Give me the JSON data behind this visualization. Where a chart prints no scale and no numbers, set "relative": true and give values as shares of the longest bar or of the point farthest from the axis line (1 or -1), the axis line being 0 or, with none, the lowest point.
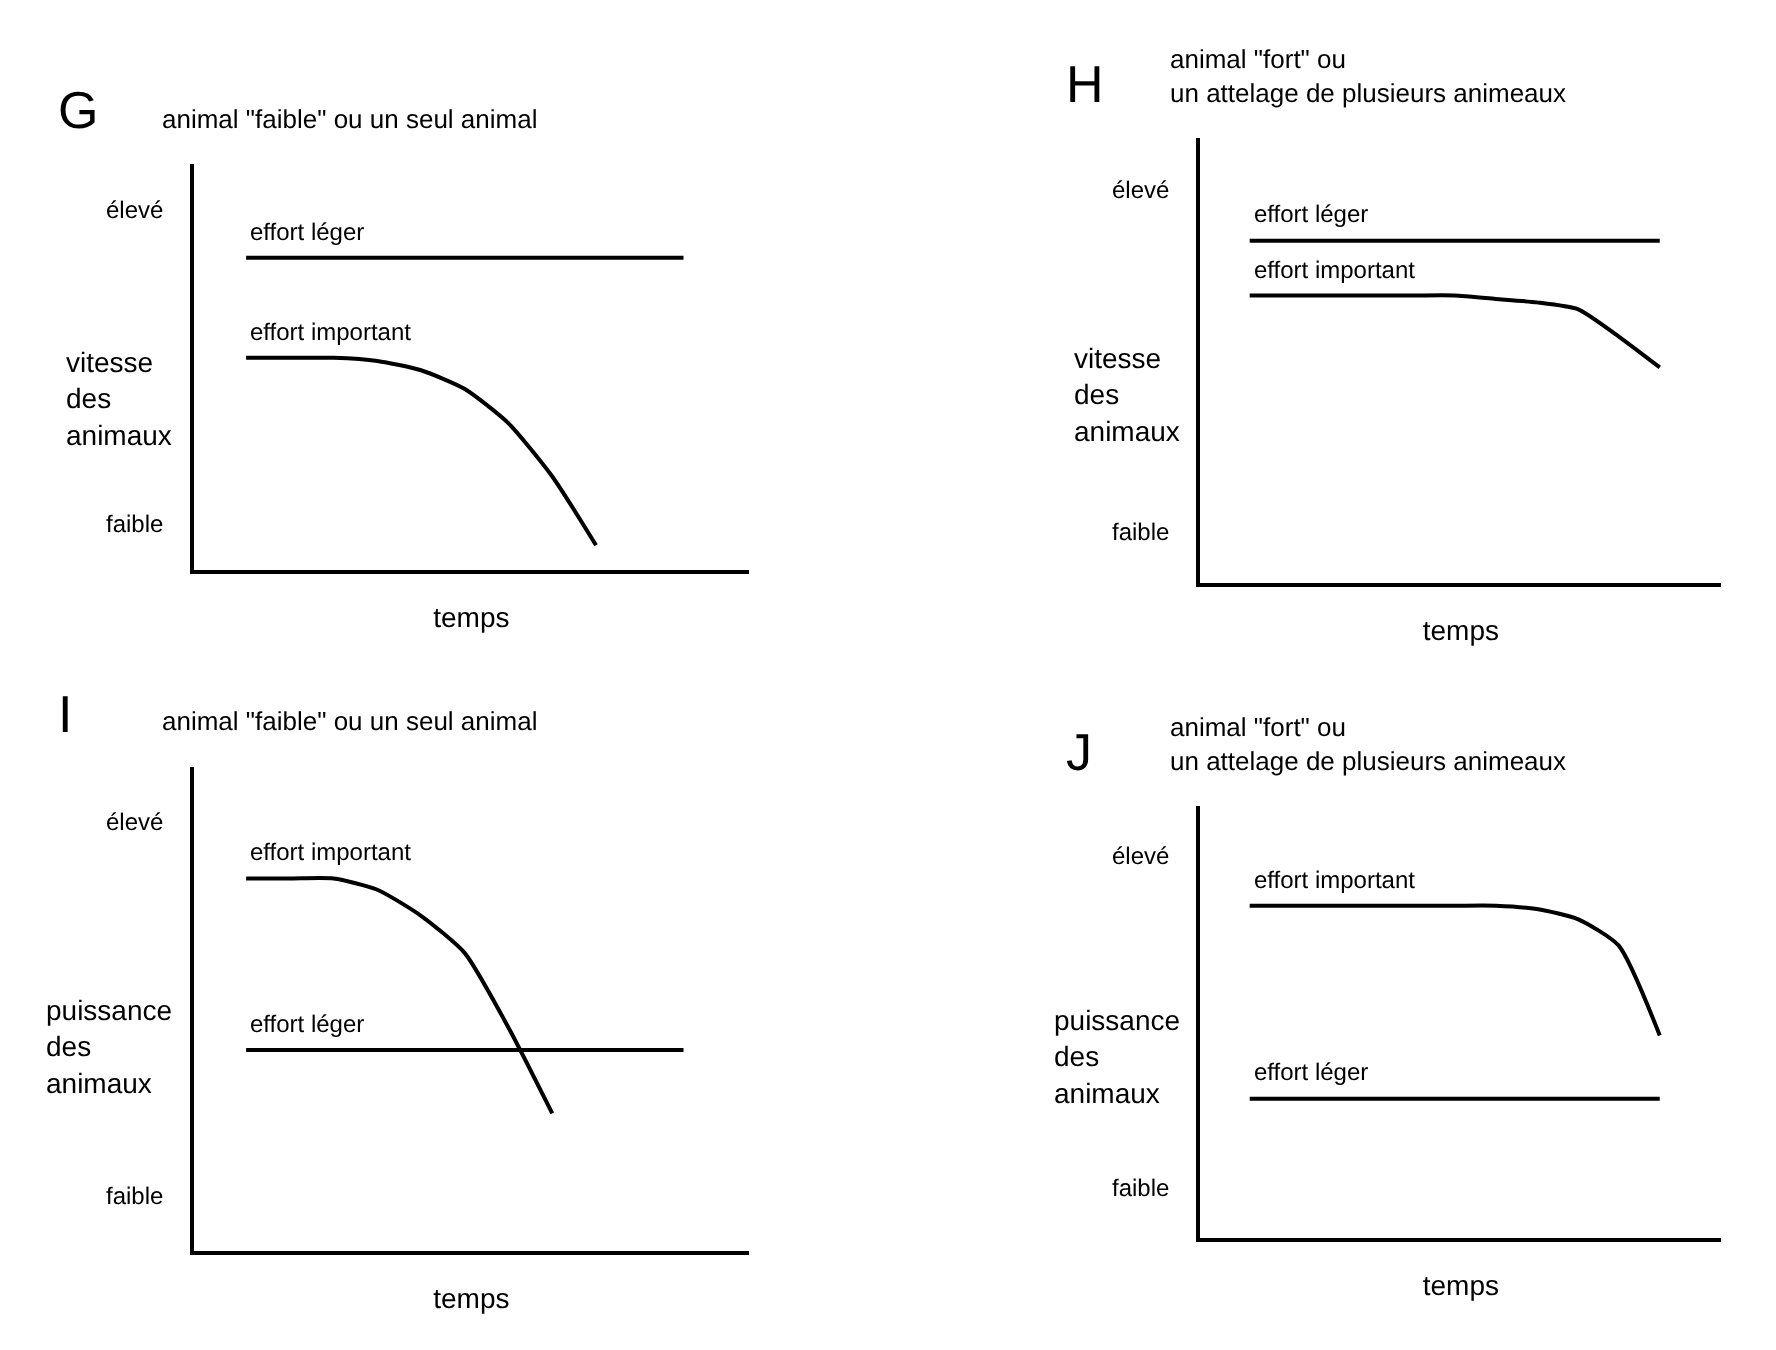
{
  "chart_data": [
    {
      "type": "line",
      "relative": true,
      "title": "G",
      "subtitle": "animal \"faible\" ou un seul animal",
      "xlabel": "temps",
      "ylabel": "vitesse\ndes\nanimaux",
      "annotations": [
        "élevé",
        "faible"
      ],
      "categories": [
        null,
        null,
        null,
        null,
        null,
        null,
        null,
        null,
        null,
        null,
        null,
        null
      ],
      "series": [
        {
          "name": "effort léger",
          "color": "#000000",
          "values": [
            1,
            1,
            1,
            1,
            1,
            1,
            1,
            1,
            1,
            1,
            1,
            null
          ]
        },
        {
          "name": "effort important",
          "color": "#000000",
          "values": [
            0.68,
            0.68,
            0.68,
            0.67,
            0.64,
            0.58,
            0.47,
            0.3,
            0.08,
            null,
            null,
            null
          ]
        }
      ]
    },
    {
      "type": "line",
      "relative": true,
      "title": "H",
      "subtitle": "animal \"fort\" ou\nun attelage de plusieurs animeaux",
      "xlabel": "temps",
      "ylabel": "vitesse\ndes\nanimaux",
      "annotations": [
        "élevé",
        "faible"
      ],
      "categories": [
        null,
        null,
        null,
        null,
        null,
        null,
        null,
        null,
        null,
        null,
        null,
        null
      ],
      "series": [
        {
          "name": "effort léger",
          "color": "#000000",
          "values": [
            1,
            1,
            1,
            1,
            1,
            1,
            1,
            1,
            1,
            1,
            1,
            null
          ]
        },
        {
          "name": "effort important",
          "color": "#000000",
          "values": [
            0.84,
            0.84,
            0.84,
            0.84,
            0.84,
            0.84,
            0.83,
            0.82,
            0.8,
            0.72,
            0.63,
            null
          ]
        }
      ]
    },
    {
      "type": "line",
      "relative": true,
      "title": "I",
      "subtitle": "animal \"faible\" ou un seul animal",
      "xlabel": "temps",
      "ylabel": "puissance\ndes\nanimaux",
      "annotations": [
        "élevé",
        "faible"
      ],
      "categories": [
        null,
        null,
        null,
        null,
        null,
        null,
        null,
        null,
        null,
        null,
        null,
        null
      ],
      "series": [
        {
          "name": "effort important",
          "color": "#000000",
          "values": [
            1,
            1,
            1,
            0.97,
            0.9,
            0.8,
            0.6,
            0.37,
            null,
            null,
            null,
            null
          ]
        },
        {
          "name": "effort léger",
          "color": "#000000",
          "values": [
            0.54,
            0.54,
            0.54,
            0.54,
            0.54,
            0.54,
            0.54,
            0.54,
            0.54,
            0.54,
            0.54,
            null
          ]
        }
      ]
    },
    {
      "type": "line",
      "relative": true,
      "title": "J",
      "subtitle": "animal \"fort\" ou\nun attelage de plusieurs animeaux",
      "xlabel": "temps",
      "ylabel": "puissance\ndes\nanimaux",
      "annotations": [
        "élevé",
        "faible"
      ],
      "categories": [
        null,
        null,
        null,
        null,
        null,
        null,
        null,
        null,
        null,
        null,
        null,
        null
      ],
      "series": [
        {
          "name": "effort important",
          "color": "#000000",
          "values": [
            1,
            1,
            1,
            1,
            1,
            1,
            1,
            0.99,
            0.96,
            0.88,
            0.61,
            null
          ]
        },
        {
          "name": "effort léger",
          "color": "#000000",
          "values": [
            0.42,
            0.42,
            0.42,
            0.42,
            0.42,
            0.42,
            0.42,
            0.42,
            0.42,
            0.42,
            0.42,
            null
          ]
        }
      ]
    }
  ]
}
